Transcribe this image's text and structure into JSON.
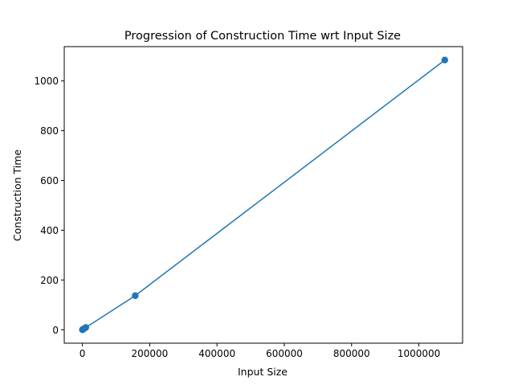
{
  "chart_data": {
    "type": "line",
    "title": "Progression of Construction Time wrt Input Size",
    "xlabel": "Input Size",
    "ylabel": "Construction Time",
    "xlim": [
      -54000,
      1130000
    ],
    "ylim": [
      -54,
      1138
    ],
    "xticks": [
      0,
      200000,
      400000,
      600000,
      800000,
      1000000
    ],
    "xtick_labels": [
      "0",
      "200000",
      "400000",
      "600000",
      "800000",
      "1000000"
    ],
    "yticks": [
      0,
      200,
      400,
      600,
      800,
      1000
    ],
    "ytick_labels": [
      "0",
      "200",
      "400",
      "600",
      "800",
      "1000"
    ],
    "grid": false,
    "legend": false,
    "series": [
      {
        "color": "#1f77b4",
        "marker": "circle",
        "x": [
          100,
          500,
          1000,
          5000,
          10000,
          157000,
          1077000
        ],
        "y": [
          0.1,
          0.4,
          0.9,
          4.5,
          9,
          137,
          1084
        ]
      }
    ]
  }
}
